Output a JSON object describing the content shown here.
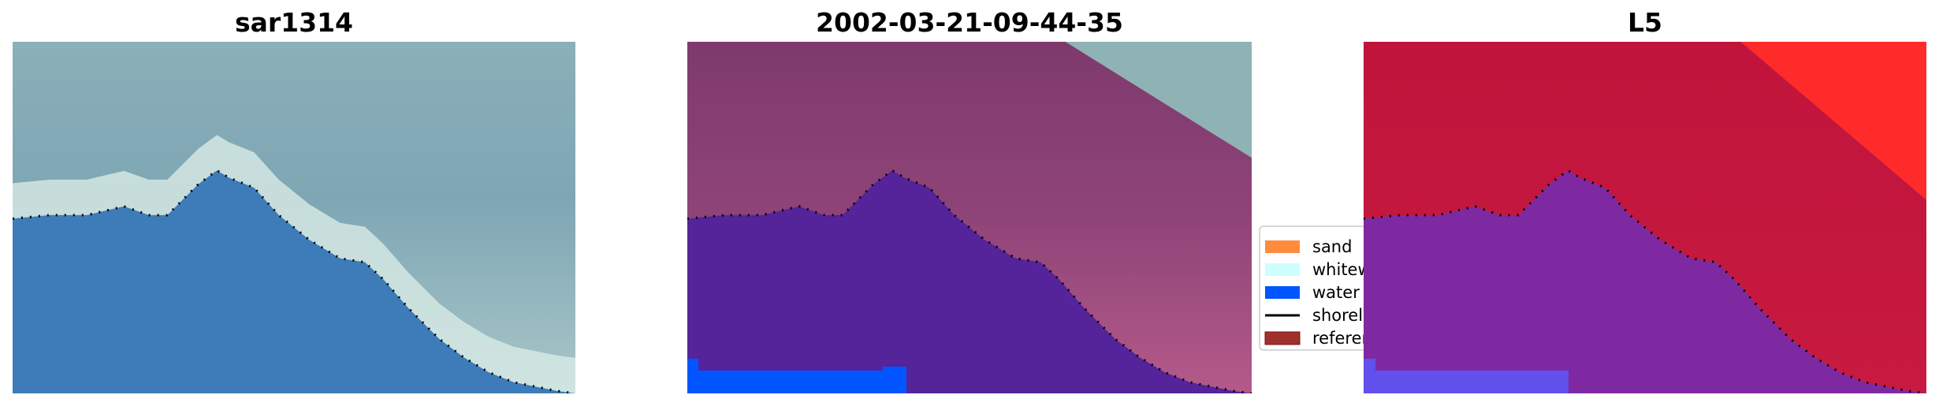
{
  "panels": [
    {
      "title": "sar1314",
      "style": "rgb"
    },
    {
      "title": "2002-03-21-09-44-35",
      "style": "classified"
    },
    {
      "title": "L5",
      "style": "probability"
    }
  ],
  "legend": {
    "items": [
      {
        "label": "sand",
        "color": "#ff8c3c",
        "kind": "patch"
      },
      {
        "label": "whitewater",
        "color": "#ccfffe",
        "kind": "patch"
      },
      {
        "label": "water",
        "color": "#0055ff",
        "kind": "patch"
      },
      {
        "label": "shoreline",
        "color": "#000000",
        "kind": "line"
      },
      {
        "label": "reference shoreline",
        "color": "#a0302c",
        "kind": "patch"
      }
    ]
  },
  "colors": {
    "land_rgb": "#8fb0b8",
    "water_rgb": "#3d7cb8",
    "land_class": "#93477a",
    "water_class": "#55239a",
    "land_prob": "#c0143c",
    "water_prob": "#7a2aa8"
  }
}
